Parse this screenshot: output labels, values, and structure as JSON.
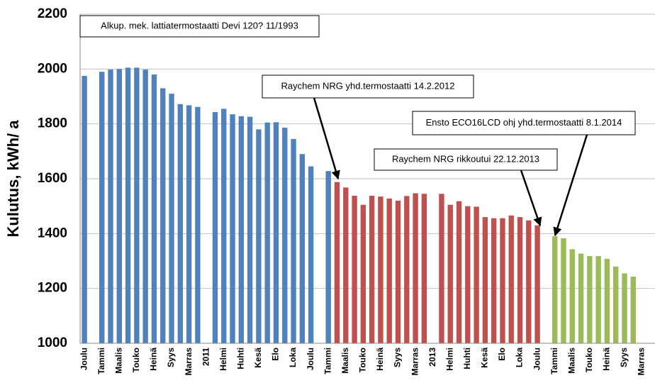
{
  "chart_data": {
    "type": "bar",
    "y_label": "Kulutus, kWh/ a",
    "ylim": [
      1000,
      2200
    ],
    "yticks": [
      1000,
      1200,
      1400,
      1600,
      1800,
      2000,
      2200
    ],
    "grid": true,
    "categories": [
      "Joulu",
      null,
      "Tammi",
      null,
      "Maalis",
      null,
      "Touko",
      null,
      "Heinä",
      null,
      "Syys",
      null,
      "Marras",
      null,
      "2011",
      null,
      "Helmi",
      null,
      "Huhti",
      null,
      "Kesä",
      null,
      "Elo",
      null,
      "Loka",
      null,
      "Joulu",
      null,
      "Tammi",
      null,
      "Maalis",
      null,
      "Touko",
      null,
      "Heinä",
      null,
      "Syys",
      null,
      "Marras",
      null,
      "2013",
      null,
      "Helmi",
      null,
      "Huhti",
      null,
      "Kesä",
      null,
      "Elo",
      null,
      "Loka",
      null,
      "Joulu",
      null,
      "Tammi",
      null,
      "Maalis",
      null,
      "Touko",
      null,
      "Heinä",
      null,
      "Syys",
      null,
      "Marras",
      null
    ],
    "series": [
      {
        "color": "#4f81bd",
        "values": [
          1975,
          null,
          1990,
          1998,
          2000,
          2005,
          2005,
          1998,
          1980,
          1930,
          1910,
          1872,
          1868,
          1862,
          null,
          1843,
          1855,
          1835,
          1828,
          1826,
          1780,
          1805,
          1806,
          1786,
          1745,
          1690,
          1645,
          null,
          1628,
          null,
          null,
          null,
          null,
          null,
          null,
          null,
          null,
          null,
          null,
          null,
          null,
          null,
          null,
          null,
          null,
          null,
          null,
          null,
          null,
          null,
          null,
          null,
          null,
          null,
          null,
          null,
          null,
          null,
          null,
          null,
          null,
          null,
          null,
          null,
          null,
          null
        ]
      },
      {
        "color": "#c0504d",
        "values": [
          null,
          null,
          null,
          null,
          null,
          null,
          null,
          null,
          null,
          null,
          null,
          null,
          null,
          null,
          null,
          null,
          null,
          null,
          null,
          null,
          null,
          null,
          null,
          null,
          null,
          null,
          null,
          null,
          null,
          1588,
          1568,
          1538,
          1505,
          1538,
          1535,
          1528,
          1520,
          1537,
          1547,
          1545,
          null,
          1545,
          1505,
          1518,
          1500,
          1498,
          1460,
          1456,
          1456,
          1466,
          1460,
          1448,
          1430,
          null,
          null,
          null,
          null,
          null,
          null,
          null,
          null,
          null,
          null,
          null,
          null,
          null
        ]
      },
      {
        "color": "#9bbb59",
        "values": [
          null,
          null,
          null,
          null,
          null,
          null,
          null,
          null,
          null,
          null,
          null,
          null,
          null,
          null,
          null,
          null,
          null,
          null,
          null,
          null,
          null,
          null,
          null,
          null,
          null,
          null,
          null,
          null,
          null,
          null,
          null,
          null,
          null,
          null,
          null,
          null,
          null,
          null,
          null,
          null,
          null,
          null,
          null,
          null,
          null,
          null,
          null,
          null,
          null,
          null,
          null,
          null,
          null,
          null,
          1390,
          1383,
          1343,
          1327,
          1318,
          1318,
          1308,
          1280,
          1255,
          1243,
          null,
          null
        ]
      }
    ],
    "annotations": [
      "Alkup. mek.  lattiatermostaatti Devi 120? 11/1993",
      "Raychem NRG yhd.termostaatti  14.2.2012",
      "Ensto ECO16LCD ohj  yhd.termostaatti  8.1.2014",
      "Raychem NRG rikkoutui 22.12.2013"
    ]
  }
}
